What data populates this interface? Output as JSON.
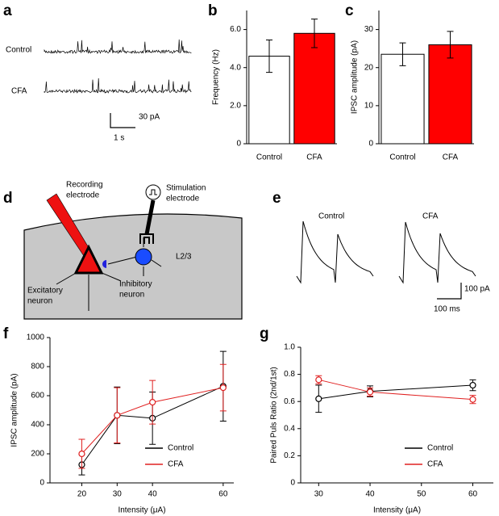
{
  "figure": {
    "panel_letters": [
      "a",
      "b",
      "c",
      "d",
      "e",
      "f",
      "g"
    ],
    "a": {
      "row_labels": [
        "Control",
        "CFA"
      ],
      "scale_y": "30 pA",
      "scale_x": "1 s"
    },
    "d": {
      "recording": [
        "Recording",
        "electrode"
      ],
      "stimulation": [
        "Stimulation",
        "electrode"
      ],
      "layer": "L2/3",
      "excitatory": [
        "Excitatory",
        "neuron"
      ],
      "inhibitory": [
        "Inhibitory",
        "neuron"
      ]
    },
    "e": {
      "trace_labels": [
        "Control",
        "CFA"
      ],
      "scale_y": "100 pA",
      "scale_x": "100 ms"
    }
  },
  "chart_data": [
    {
      "type": "bar",
      "ylabel": "Frequency (Hz)",
      "categories": [
        "Control",
        "CFA"
      ],
      "values": [
        4.6,
        5.8
      ],
      "errors": [
        0.85,
        0.75
      ],
      "colors": [
        "#ffffff",
        "#ff0000"
      ],
      "ylim": [
        0,
        7
      ],
      "yticks": [
        0,
        {
          "value": 2,
          "label": "2.0"
        },
        {
          "value": 4,
          "label": "4.0"
        },
        {
          "value": 6,
          "label": "6.0"
        }
      ]
    },
    {
      "type": "bar",
      "ylabel": "IPSC amplitude (pA)",
      "categories": [
        "Control",
        "CFA"
      ],
      "values": [
        23.5,
        26
      ],
      "errors": [
        3,
        3.5
      ],
      "colors": [
        "#ffffff",
        "#ff0000"
      ],
      "ylim": [
        0,
        35
      ],
      "yticks": [
        0,
        10,
        20,
        30
      ]
    },
    {
      "type": "line",
      "ylabel": "IPSC amplitude (pA)",
      "xlabel": "Intensity (μA)",
      "x": [
        20,
        30,
        40,
        60
      ],
      "series": [
        {
          "name": "Control",
          "color": "#000000",
          "values": [
            125,
            465,
            445,
            665
          ],
          "errors": [
            70,
            195,
            180,
            240
          ]
        },
        {
          "name": "CFA",
          "color": "#e02020",
          "values": [
            200,
            465,
            555,
            655
          ],
          "errors": [
            100,
            190,
            150,
            160
          ]
        }
      ],
      "xlim": [
        11,
        63
      ],
      "xticks": [
        20,
        30,
        40,
        60
      ],
      "ylim": [
        0,
        1000
      ],
      "yticks": [
        0,
        200,
        400,
        600,
        800,
        1000
      ],
      "legend": "lower right"
    },
    {
      "type": "line",
      "ylabel": "Paired Puls Ratio (2nd/1st)",
      "xlabel": "Intensity (μA)",
      "x": [
        30,
        40,
        60
      ],
      "series": [
        {
          "name": "Control",
          "color": "#000000",
          "values": [
            0.62,
            0.675,
            0.72
          ],
          "errors": [
            0.1,
            0.04,
            0.04
          ]
        },
        {
          "name": "CFA",
          "color": "#e02020",
          "values": [
            0.76,
            0.67,
            0.615
          ],
          "errors": [
            0.03,
            0.03,
            0.03
          ]
        }
      ],
      "xlim": [
        26.5,
        64
      ],
      "xticks": [
        30,
        40,
        50,
        60
      ],
      "ylim": [
        0,
        1
      ],
      "yticks": [
        0,
        0.2,
        0.4,
        0.6,
        0.8,
        {
          "value": 1,
          "label": "1.0"
        }
      ],
      "legend": "lower right"
    }
  ]
}
